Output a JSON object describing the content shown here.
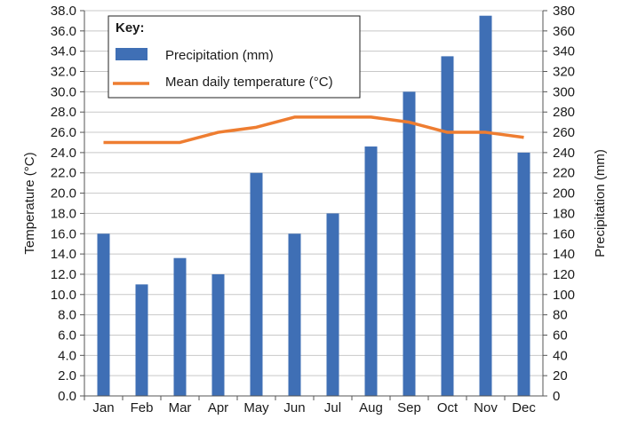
{
  "colors": {
    "bar": "#3f6fb5",
    "line": "#ee7d31",
    "grid": "#c8c8c8",
    "axis": "#555555"
  },
  "legend": {
    "title": "Key:",
    "bar_label": "Precipitation (mm)",
    "line_label": "Mean daily temperature (°C)",
    "placement": "top-left"
  },
  "chart_data": {
    "type": "bar+line",
    "categories": [
      "Jan",
      "Feb",
      "Mar",
      "Apr",
      "May",
      "Jun",
      "Jul",
      "Aug",
      "Sep",
      "Oct",
      "Nov",
      "Dec"
    ],
    "series": [
      {
        "name": "Precipitation (mm)",
        "type": "bar",
        "axis": "right",
        "values": [
          160,
          110,
          136,
          120,
          220,
          160,
          180,
          246,
          300,
          335,
          375,
          240
        ]
      },
      {
        "name": "Mean daily temperature (°C)",
        "type": "line",
        "axis": "left",
        "values": [
          25,
          25,
          25,
          26,
          26.5,
          27.5,
          27.5,
          27.5,
          27,
          26,
          26,
          25.5
        ]
      }
    ],
    "ylabel": "Temperature (°C)",
    "y2label": "Precipitation (mm)",
    "ylim": [
      0,
      38
    ],
    "y2lim": [
      0,
      380
    ],
    "yticks": [
      "0.0",
      "2.0",
      "4.0",
      "6.0",
      "8.0",
      "10.0",
      "12.0",
      "14.0",
      "16.0",
      "18.0",
      "20.0",
      "22.0",
      "24.0",
      "26.0",
      "28.0",
      "30.0",
      "32.0",
      "34.0",
      "36.0",
      "38.0"
    ],
    "y2ticks": [
      "0",
      "20",
      "40",
      "60",
      "80",
      "100",
      "120",
      "140",
      "160",
      "180",
      "200",
      "220",
      "240",
      "260",
      "280",
      "300",
      "320",
      "340",
      "360",
      "380"
    ],
    "grid": true
  }
}
